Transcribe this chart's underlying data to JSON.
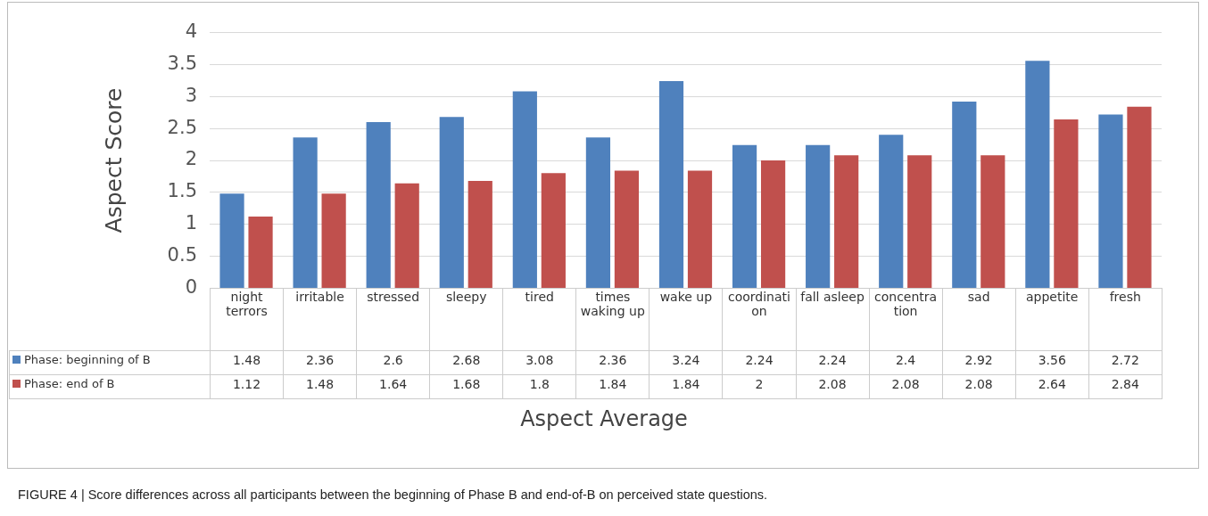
{
  "chart_data": {
    "type": "bar",
    "ylabel": "Aspect Score",
    "xlabel": "Aspect Average",
    "categories": [
      "night terrors",
      "irritable",
      "stressed",
      "sleepy",
      "tired",
      "times waking up",
      "wake up",
      "coordination",
      "fall asleep",
      "concentration",
      "sad",
      "appetite",
      "fresh"
    ],
    "series": [
      {
        "name": "Phase: beginning of B",
        "color": "#4f81bd",
        "values": [
          1.48,
          2.36,
          2.6,
          2.68,
          3.08,
          2.36,
          3.24,
          2.24,
          2.24,
          2.4,
          2.92,
          3.56,
          2.72
        ]
      },
      {
        "name": "Phase: end of B",
        "color": "#c0504d",
        "values": [
          1.12,
          1.48,
          1.64,
          1.68,
          1.8,
          1.84,
          1.84,
          2,
          2.08,
          2.08,
          2.08,
          2.64,
          2.84
        ]
      }
    ],
    "ylim": [
      0,
      4
    ],
    "yticks": [
      0,
      0.5,
      1,
      1.5,
      2,
      2.5,
      3,
      3.5,
      4
    ],
    "grid": "y",
    "legend": "bottom",
    "data_labels": true,
    "annotations": [
      "FIGURE 4 | Score differences across all participants between the beginning of Phase B and end-of-B on perceived state questions."
    ]
  }
}
